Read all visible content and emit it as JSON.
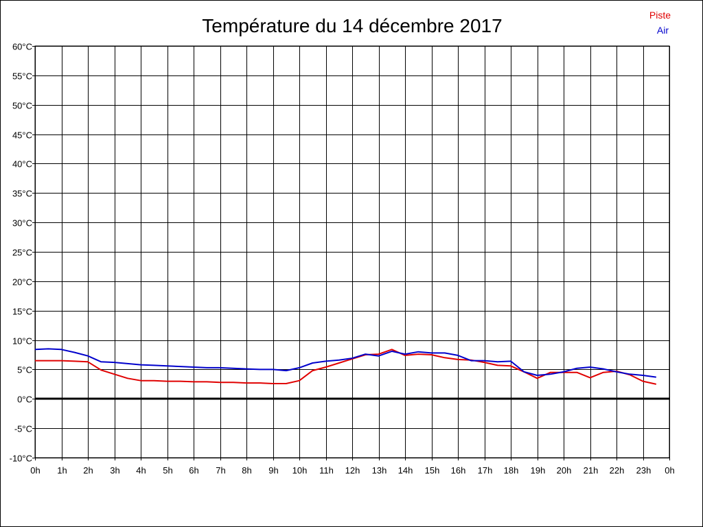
{
  "chart_data": {
    "type": "line",
    "title": "Température du 14 décembre 2017",
    "xlabel": "",
    "ylabel": "",
    "x_unit": "h",
    "xlim": [
      0,
      24
    ],
    "x_ticks": [
      "0h",
      "1h",
      "2h",
      "3h",
      "4h",
      "5h",
      "6h",
      "7h",
      "8h",
      "9h",
      "10h",
      "11h",
      "12h",
      "13h",
      "14h",
      "15h",
      "16h",
      "17h",
      "18h",
      "19h",
      "20h",
      "21h",
      "22h",
      "23h",
      "0h"
    ],
    "ylim": [
      -10,
      60
    ],
    "y_ticks": [
      "-10°C",
      "-5°C",
      "0°C",
      "5°C",
      "10°C",
      "15°C",
      "20°C",
      "25°C",
      "30°C",
      "35°C",
      "40°C",
      "45°C",
      "50°C",
      "55°C",
      "60°C"
    ],
    "grid": true,
    "zero_line": true,
    "legend": {
      "position": "top-right",
      "entries": [
        "Piste",
        "Air"
      ]
    },
    "colors": {
      "Piste": "#e00000",
      "Air": "#0000cc",
      "grid": "#000000",
      "zero_line": "#000000"
    },
    "x": [
      0,
      0.5,
      1,
      1.5,
      2,
      2.5,
      3,
      3.5,
      4,
      4.5,
      5,
      5.5,
      6,
      6.5,
      7,
      7.5,
      8,
      8.5,
      9,
      9.5,
      10,
      10.5,
      11,
      11.5,
      12,
      12.5,
      13,
      13.5,
      14,
      14.5,
      15,
      15.5,
      16,
      16.5,
      17,
      17.5,
      18,
      18.5,
      19,
      19.5,
      20,
      20.5,
      21,
      21.5,
      22,
      22.5,
      23,
      23.5
    ],
    "series": [
      {
        "name": "Piste",
        "values": [
          6.5,
          6.5,
          6.5,
          6.4,
          6.3,
          4.9,
          4.2,
          3.5,
          3.1,
          3.1,
          3.0,
          3.0,
          2.9,
          2.9,
          2.8,
          2.8,
          2.7,
          2.7,
          2.6,
          2.6,
          3.1,
          4.8,
          5.4,
          6.1,
          6.8,
          7.5,
          7.6,
          8.4,
          7.4,
          7.6,
          7.5,
          7.0,
          6.7,
          6.6,
          6.2,
          5.7,
          5.6,
          4.6,
          3.5,
          4.5,
          4.5,
          4.5,
          3.6,
          4.5,
          4.7,
          4.1,
          3.0,
          2.5
        ]
      },
      {
        "name": "Air",
        "values": [
          8.4,
          8.5,
          8.4,
          7.9,
          7.3,
          6.3,
          6.2,
          6.0,
          5.8,
          5.7,
          5.6,
          5.5,
          5.4,
          5.3,
          5.3,
          5.2,
          5.1,
          5.0,
          5.0,
          4.8,
          5.3,
          6.1,
          6.4,
          6.6,
          6.9,
          7.6,
          7.3,
          8.1,
          7.6,
          8.0,
          7.8,
          7.8,
          7.4,
          6.5,
          6.5,
          6.3,
          6.4,
          4.6,
          4.0,
          4.2,
          4.6,
          5.2,
          5.4,
          5.1,
          4.6,
          4.2,
          4.0,
          3.7
        ]
      }
    ]
  }
}
